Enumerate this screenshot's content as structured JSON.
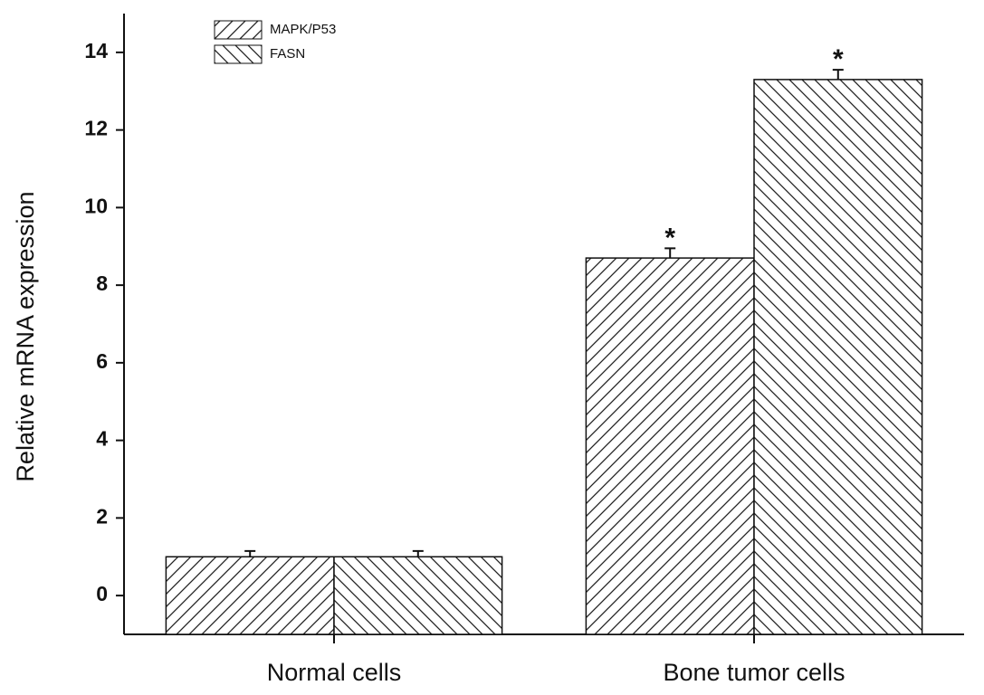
{
  "chart_data": {
    "type": "bar",
    "y_label": "Relative mRNA expression",
    "categories": [
      "Normal cells",
      "Bone tumor cells"
    ],
    "series": [
      {
        "name": "MAPK/P53",
        "color": "#222222",
        "hatch": "/",
        "values": [
          1.0,
          8.7
        ],
        "errors": [
          0.15,
          0.25
        ],
        "value_annotations": [
          null,
          "*"
        ]
      },
      {
        "name": "FASN",
        "color": "#222222",
        "hatch": "\\",
        "values": [
          1.0,
          13.3
        ],
        "errors": [
          0.15,
          0.25
        ],
        "value_annotations": [
          null,
          "*"
        ]
      }
    ],
    "ylim": [
      -1,
      15
    ],
    "yticks": [
      0,
      2,
      4,
      6,
      8,
      10,
      12,
      14
    ],
    "grid": false
  }
}
